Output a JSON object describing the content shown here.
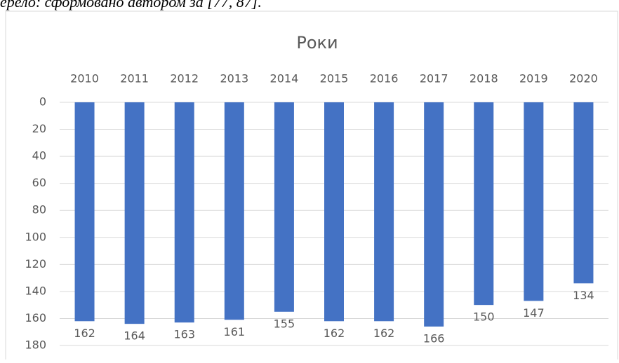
{
  "source_note": "ерело: сформовано автором за [77, 87].",
  "chart_data": {
    "type": "bar",
    "title": "Роки",
    "categories": [
      "2010",
      "2011",
      "2012",
      "2013",
      "2014",
      "2015",
      "2016",
      "2017",
      "2018",
      "2019",
      "2020"
    ],
    "values": [
      162,
      164,
      163,
      161,
      155,
      162,
      162,
      166,
      150,
      147,
      134
    ],
    "color": "#4472c4",
    "ylim": [
      0,
      180
    ],
    "yticks": [
      0,
      20,
      40,
      60,
      80,
      100,
      120,
      140,
      160,
      180
    ],
    "y_inverted": true,
    "grid": true,
    "data_labels": true
  }
}
